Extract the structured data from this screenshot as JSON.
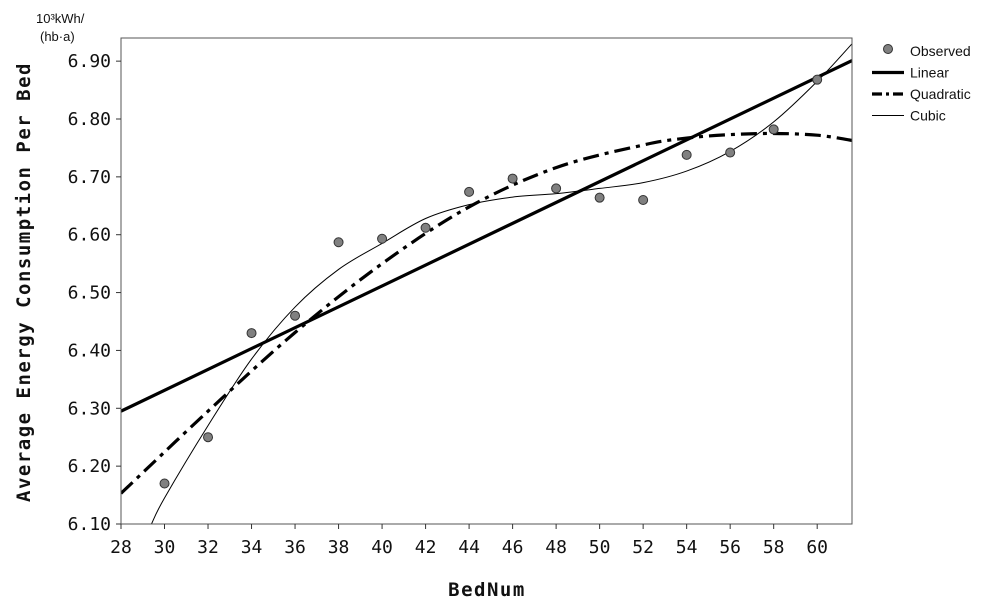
{
  "chart_data": {
    "type": "scatter",
    "xlabel": "BedNum",
    "ylabel": "Average Energy Consumption Per Bed",
    "y_unit_line1": "10³kWh/",
    "y_unit_line2": "(hb·a)",
    "xlim": [
      28,
      61.6
    ],
    "ylim": [
      6.1,
      6.94
    ],
    "xticks": [
      "28",
      "30",
      "32",
      "34",
      "36",
      "38",
      "40",
      "42",
      "44",
      "46",
      "48",
      "50",
      "52",
      "54",
      "56",
      "58",
      "60"
    ],
    "yticks": [
      "6.10",
      "6.20",
      "6.30",
      "6.40",
      "6.50",
      "6.60",
      "6.70",
      "6.80",
      "6.90"
    ],
    "grid": false,
    "legend_position": "right",
    "observed": {
      "name": "Observed",
      "x": [
        30,
        32,
        34,
        36,
        38,
        40,
        42,
        44,
        46,
        48,
        50,
        52,
        54,
        56,
        58,
        60
      ],
      "y": [
        6.17,
        6.25,
        6.43,
        6.46,
        6.587,
        6.593,
        6.612,
        6.674,
        6.697,
        6.68,
        6.664,
        6.66,
        6.738,
        6.742,
        6.782,
        6.868
      ]
    },
    "fits": [
      {
        "name": "Linear",
        "style": "solid-thick",
        "points": [
          [
            28,
            6.295
          ],
          [
            61.6,
            6.901
          ]
        ]
      },
      {
        "name": "Quadratic",
        "style": "dashdot",
        "points": [
          [
            28,
            6.153
          ],
          [
            32,
            6.295
          ],
          [
            36,
            6.431
          ],
          [
            40,
            6.55
          ],
          [
            44,
            6.648
          ],
          [
            48,
            6.716
          ],
          [
            52,
            6.755
          ],
          [
            54,
            6.767
          ],
          [
            56,
            6.773
          ],
          [
            58,
            6.775
          ],
          [
            60,
            6.772
          ],
          [
            61.6,
            6.763
          ]
        ]
      },
      {
        "name": "Cubic",
        "style": "solid-thin",
        "points": [
          [
            29.4,
            6.1
          ],
          [
            30,
            6.145
          ],
          [
            32,
            6.27
          ],
          [
            34,
            6.385
          ],
          [
            36,
            6.475
          ],
          [
            38,
            6.54
          ],
          [
            40,
            6.585
          ],
          [
            42,
            6.628
          ],
          [
            44,
            6.652
          ],
          [
            46,
            6.665
          ],
          [
            48,
            6.671
          ],
          [
            50,
            6.68
          ],
          [
            52,
            6.69
          ],
          [
            54,
            6.71
          ],
          [
            56,
            6.744
          ],
          [
            58,
            6.795
          ],
          [
            60,
            6.865
          ],
          [
            61.6,
            6.93
          ]
        ]
      }
    ],
    "legend": [
      {
        "name": "Observed",
        "marker": "circle"
      },
      {
        "name": "Linear",
        "marker": "solid-thick"
      },
      {
        "name": "Quadratic",
        "marker": "dashdot"
      },
      {
        "name": "Cubic",
        "marker": "solid-thin"
      }
    ],
    "colors": {
      "point_fill": "#808080",
      "point_stroke": "#333333",
      "line": "#000000"
    }
  }
}
